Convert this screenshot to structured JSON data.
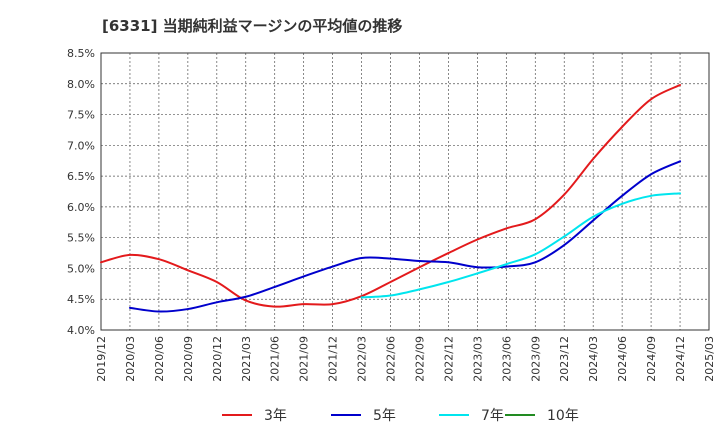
{
  "chart_data": {
    "type": "line",
    "title": "[6331]  当期純利益マージンの平均値の推移",
    "xlabel": "",
    "ylabel": "",
    "ylim": [
      4.0,
      8.5
    ],
    "grid": true,
    "legend_position": "bottom",
    "y_ticks": [
      "4.0%",
      "4.5%",
      "5.0%",
      "5.5%",
      "6.0%",
      "6.5%",
      "7.0%",
      "7.5%",
      "8.0%",
      "8.5%"
    ],
    "x_ticks": [
      "2019/12",
      "2020/03",
      "2020/06",
      "2020/09",
      "2020/12",
      "2021/03",
      "2021/06",
      "2021/09",
      "2021/12",
      "2022/03",
      "2022/06",
      "2022/09",
      "2022/12",
      "2023/03",
      "2023/06",
      "2023/09",
      "2023/12",
      "2024/03",
      "2024/06",
      "2024/09",
      "2024/12",
      "2025/03"
    ],
    "series": [
      {
        "name": "3年",
        "color": "#e31a1c",
        "points": [
          [
            "2019/12",
            5.1
          ],
          [
            "2020/03",
            5.22
          ],
          [
            "2020/06",
            5.15
          ],
          [
            "2020/09",
            4.97
          ],
          [
            "2020/12",
            4.78
          ],
          [
            "2021/03",
            4.48
          ],
          [
            "2021/06",
            4.38
          ],
          [
            "2021/09",
            4.42
          ],
          [
            "2021/12",
            4.42
          ],
          [
            "2022/03",
            4.55
          ],
          [
            "2022/06",
            4.78
          ],
          [
            "2022/09",
            5.02
          ],
          [
            "2022/12",
            5.25
          ],
          [
            "2023/03",
            5.47
          ],
          [
            "2023/06",
            5.65
          ],
          [
            "2023/09",
            5.8
          ],
          [
            "2023/12",
            6.2
          ],
          [
            "2024/03",
            6.78
          ],
          [
            "2024/06",
            7.3
          ],
          [
            "2024/09",
            7.75
          ],
          [
            "2024/12",
            7.98
          ]
        ]
      },
      {
        "name": "5年",
        "color": "#0000cc",
        "points": [
          [
            "2020/03",
            4.36
          ],
          [
            "2020/06",
            4.3
          ],
          [
            "2020/09",
            4.34
          ],
          [
            "2020/12",
            4.45
          ],
          [
            "2021/03",
            4.54
          ],
          [
            "2021/06",
            4.7
          ],
          [
            "2021/09",
            4.87
          ],
          [
            "2021/12",
            5.03
          ],
          [
            "2022/03",
            5.17
          ],
          [
            "2022/06",
            5.16
          ],
          [
            "2022/09",
            5.12
          ],
          [
            "2022/12",
            5.1
          ],
          [
            "2023/03",
            5.02
          ],
          [
            "2023/06",
            5.03
          ],
          [
            "2023/09",
            5.1
          ],
          [
            "2023/12",
            5.38
          ],
          [
            "2024/03",
            5.78
          ],
          [
            "2024/06",
            6.18
          ],
          [
            "2024/09",
            6.53
          ],
          [
            "2024/12",
            6.74
          ]
        ]
      },
      {
        "name": "7年",
        "color": "#00e5ee",
        "points": [
          [
            "2022/03",
            4.53
          ],
          [
            "2022/06",
            4.56
          ],
          [
            "2022/09",
            4.66
          ],
          [
            "2022/12",
            4.78
          ],
          [
            "2023/03",
            4.92
          ],
          [
            "2023/06",
            5.07
          ],
          [
            "2023/09",
            5.23
          ],
          [
            "2023/12",
            5.52
          ],
          [
            "2024/03",
            5.84
          ],
          [
            "2024/06",
            6.05
          ],
          [
            "2024/09",
            6.18
          ],
          [
            "2024/12",
            6.22
          ]
        ]
      },
      {
        "name": "10年",
        "color": "#228b22",
        "points": []
      }
    ]
  }
}
